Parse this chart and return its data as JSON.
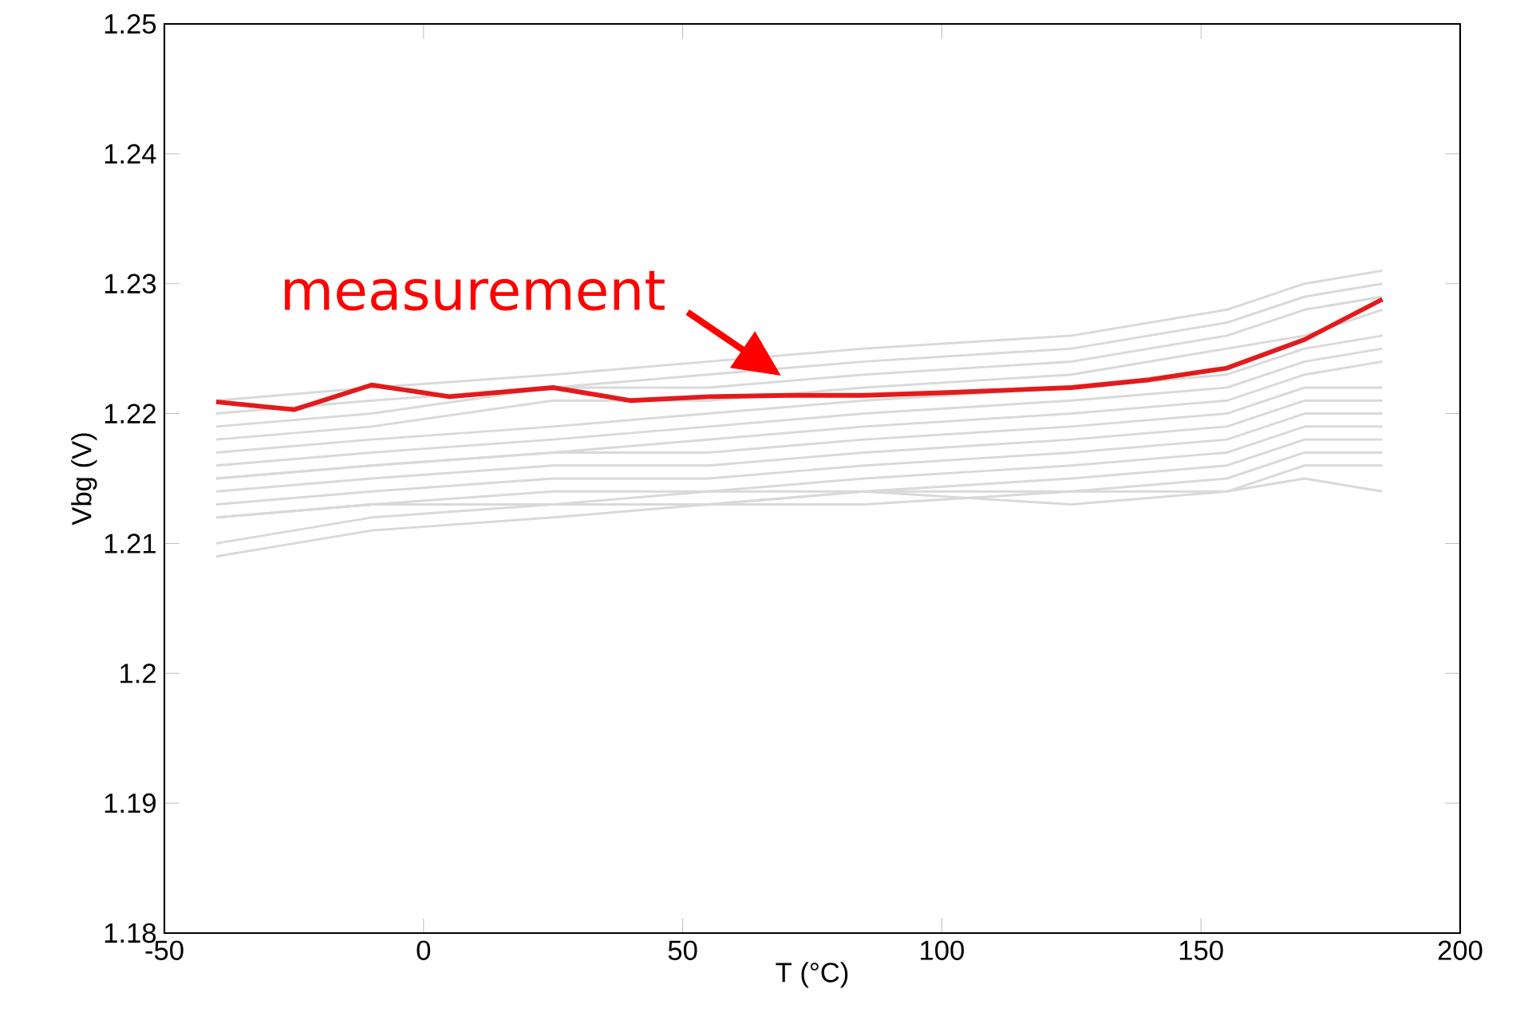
{
  "chart_data": {
    "type": "line",
    "xlabel": "T (°C)",
    "ylabel": "Vbg (V)",
    "x": [
      -40,
      -25,
      -10,
      5,
      25,
      40,
      55,
      70,
      85,
      100,
      125,
      140,
      155,
      170,
      185
    ],
    "series": [
      {
        "color": "#d9d9d9",
        "x": [
          -40,
          -10,
          25,
          55,
          85,
          125,
          155,
          170,
          185
        ],
        "values": [
          1.221,
          1.222,
          1.223,
          1.224,
          1.225,
          1.226,
          1.228,
          1.23,
          1.231
        ]
      },
      {
        "color": "#d9d9d9",
        "x": [
          -40,
          -10,
          25,
          55,
          85,
          125,
          155,
          170,
          185
        ],
        "values": [
          1.22,
          1.221,
          1.222,
          1.223,
          1.224,
          1.225,
          1.227,
          1.229,
          1.23
        ]
      },
      {
        "color": "#d9d9d9",
        "x": [
          -40,
          -10,
          25,
          55,
          85,
          125,
          155,
          170,
          185
        ],
        "values": [
          1.219,
          1.22,
          1.222,
          1.222,
          1.223,
          1.224,
          1.226,
          1.228,
          1.229
        ]
      },
      {
        "color": "#d9d9d9",
        "x": [
          -40,
          -10,
          25,
          55,
          85,
          125,
          155,
          170,
          185
        ],
        "values": [
          1.218,
          1.219,
          1.221,
          1.221,
          1.222,
          1.223,
          1.225,
          1.226,
          1.228
        ]
      },
      {
        "color": "#d9d9d9",
        "x": [
          -40,
          -10,
          25,
          55,
          85,
          125,
          155,
          170,
          185
        ],
        "values": [
          1.217,
          1.218,
          1.219,
          1.22,
          1.221,
          1.222,
          1.223,
          1.225,
          1.226
        ]
      },
      {
        "color": "#d9d9d9",
        "x": [
          -40,
          -10,
          25,
          55,
          85,
          125,
          155,
          170,
          185
        ],
        "values": [
          1.216,
          1.217,
          1.218,
          1.219,
          1.22,
          1.221,
          1.222,
          1.224,
          1.225
        ]
      },
      {
        "color": "#d9d9d9",
        "x": [
          -40,
          -10,
          25,
          55,
          85,
          125,
          155,
          170,
          185
        ],
        "values": [
          1.215,
          1.216,
          1.217,
          1.218,
          1.219,
          1.22,
          1.221,
          1.223,
          1.224
        ]
      },
      {
        "color": "#d9d9d9",
        "x": [
          -40,
          -10,
          25,
          55,
          85,
          125,
          155,
          170,
          185
        ],
        "values": [
          1.215,
          1.216,
          1.217,
          1.217,
          1.218,
          1.219,
          1.22,
          1.222,
          1.222
        ]
      },
      {
        "color": "#d9d9d9",
        "x": [
          -40,
          -10,
          25,
          55,
          85,
          125,
          155,
          170,
          185
        ],
        "values": [
          1.214,
          1.215,
          1.216,
          1.216,
          1.217,
          1.218,
          1.219,
          1.221,
          1.221
        ]
      },
      {
        "color": "#d9d9d9",
        "x": [
          -40,
          -10,
          25,
          55,
          85,
          125,
          155,
          170,
          185
        ],
        "values": [
          1.213,
          1.214,
          1.215,
          1.215,
          1.216,
          1.217,
          1.218,
          1.22,
          1.22
        ]
      },
      {
        "color": "#d9d9d9",
        "x": [
          -40,
          -10,
          25,
          55,
          85,
          125,
          155,
          170,
          185
        ],
        "values": [
          1.212,
          1.213,
          1.214,
          1.214,
          1.215,
          1.216,
          1.217,
          1.219,
          1.219
        ]
      },
      {
        "color": "#d9d9d9",
        "x": [
          -40,
          -10,
          25,
          55,
          85,
          125,
          155,
          170,
          185
        ],
        "values": [
          1.212,
          1.213,
          1.213,
          1.214,
          1.214,
          1.215,
          1.216,
          1.218,
          1.218
        ]
      },
      {
        "color": "#d9d9d9",
        "x": [
          -40,
          -10,
          25,
          55,
          85,
          125,
          155,
          170,
          185
        ],
        "values": [
          1.21,
          1.212,
          1.213,
          1.213,
          1.214,
          1.214,
          1.215,
          1.217,
          1.217
        ]
      },
      {
        "color": "#d9d9d9",
        "x": [
          -40,
          -10,
          25,
          55,
          85,
          125,
          155,
          170,
          185
        ],
        "values": [
          1.209,
          1.211,
          1.212,
          1.213,
          1.213,
          1.214,
          1.214,
          1.216,
          1.216
        ]
      },
      {
        "color": "#d9d9d9",
        "x": [
          -40,
          -10,
          25,
          55,
          85,
          125,
          155,
          170,
          185
        ],
        "values": [
          1.212,
          1.213,
          1.213,
          1.213,
          1.214,
          1.213,
          1.214,
          1.215,
          1.214
        ]
      },
      {
        "color": "#e31a1c",
        "values": [
          1.2209,
          1.2203,
          1.2222,
          1.2213,
          1.222,
          1.221,
          1.2213,
          1.2214,
          1.2214,
          1.2216,
          1.222,
          1.2226,
          1.2235,
          1.2257,
          1.2288
        ]
      }
    ],
    "xlim": [
      -50,
      200
    ],
    "ylim": [
      1.18,
      1.25
    ],
    "xticks": [
      -50,
      0,
      50,
      100,
      150,
      200
    ],
    "yticks": [
      1.18,
      1.19,
      1.2,
      1.21,
      1.22,
      1.23,
      1.24,
      1.25
    ],
    "annotations": [
      {
        "text": "measurement",
        "x": 69,
        "y": 1.2229
      }
    ]
  }
}
